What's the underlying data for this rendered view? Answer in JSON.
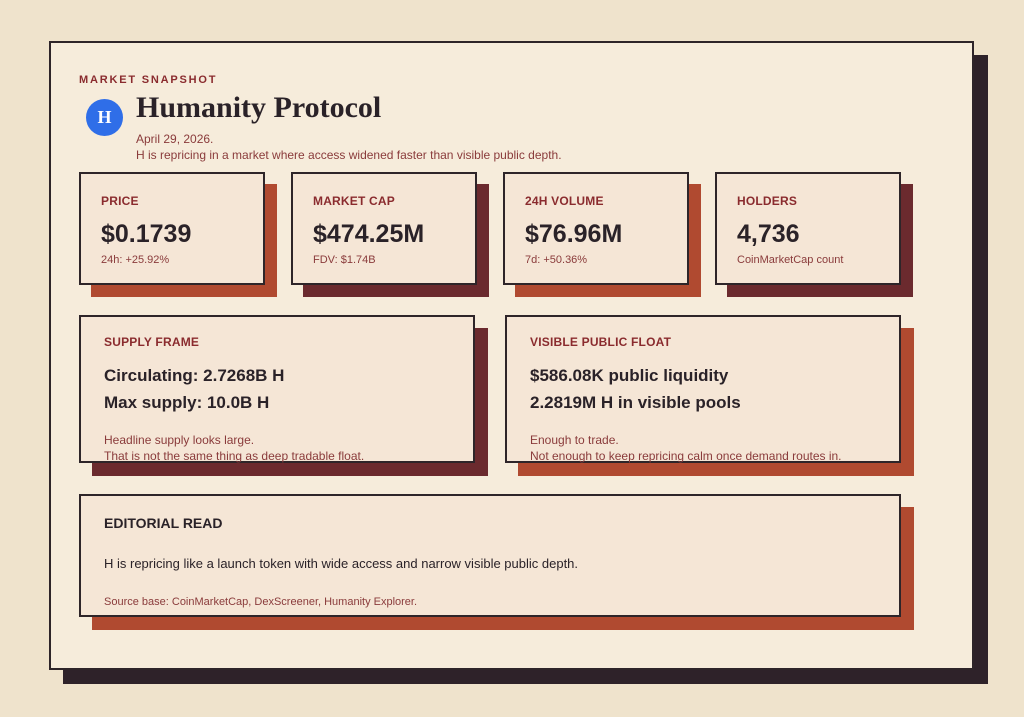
{
  "header": {
    "eyebrow": "MARKET SNAPSHOT",
    "logo": "H",
    "title": "Humanity Protocol",
    "date": "April 29, 2026.",
    "summary": "H is repricing in a market where access widened faster than visible public depth."
  },
  "metrics": [
    {
      "label": "PRICE",
      "value": "$0.1739",
      "note": "24h: +25.92%"
    },
    {
      "label": "MARKET CAP",
      "value": "$474.25M",
      "note": "FDV: $1.74B"
    },
    {
      "label": "24H VOLUME",
      "value": "$76.96M",
      "note": "7d: +50.36%"
    },
    {
      "label": "HOLDERS",
      "value": "4,736",
      "note": "CoinMarketCap count"
    }
  ],
  "panels": [
    {
      "title": "SUPPLY FRAME",
      "lines": [
        "Circulating: 2.7268B H",
        "Max supply: 10.0B H"
      ],
      "notes": [
        "Headline supply looks large.",
        "That is not the same thing as deep tradable float."
      ]
    },
    {
      "title": "VISIBLE PUBLIC FLOAT",
      "lines": [
        "$586.08K public liquidity",
        "2.2819M H in visible pools"
      ],
      "notes": [
        "Enough to trade.",
        "Not enough to keep repricing calm once demand routes in."
      ]
    }
  ],
  "editorial": {
    "title": "EDITORIAL READ",
    "body": "H is repricing like a launch token with wide access and narrow visible public depth.",
    "source": "Source base: CoinMarketCap, DexScreener, Humanity Explorer."
  }
}
